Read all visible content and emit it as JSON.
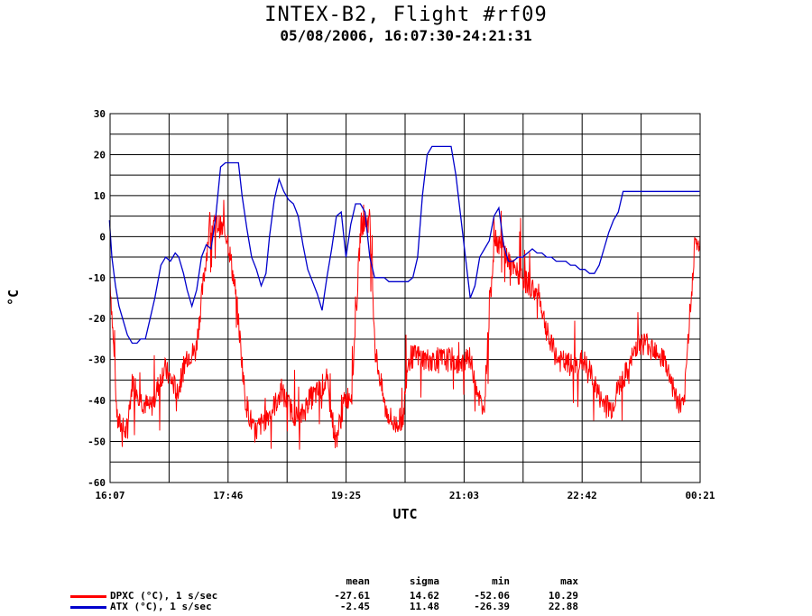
{
  "header": {
    "title": "INTEX-B2, Flight #rf09",
    "subtitle": "05/08/2006, 16:07:30-24:21:31"
  },
  "chart_data": {
    "type": "line",
    "xlabel": "UTC",
    "ylabel": "°C",
    "ylim": [
      -60,
      30
    ],
    "yticks": [
      30,
      20,
      10,
      0,
      -10,
      -20,
      -30,
      -40,
      -50,
      -60
    ],
    "xtick_labels": [
      "16:07",
      "17:46",
      "19:25",
      "21:03",
      "22:42",
      "00:21"
    ],
    "grid": true,
    "series": [
      {
        "name": "ATX (°C), 1 s/sec",
        "color": "#0000cc",
        "x": [
          "16:07",
          "16:09",
          "16:12",
          "16:15",
          "16:18",
          "16:22",
          "16:26",
          "16:30",
          "16:33",
          "16:37",
          "16:41",
          "16:45",
          "16:50",
          "16:54",
          "16:58",
          "17:02",
          "17:05",
          "17:09",
          "17:12",
          "17:16",
          "17:20",
          "17:24",
          "17:28",
          "17:32",
          "17:36",
          "17:40",
          "17:44",
          "17:48",
          "17:51",
          "17:55",
          "17:58",
          "18:02",
          "18:06",
          "18:10",
          "18:14",
          "18:18",
          "18:21",
          "18:25",
          "18:29",
          "18:33",
          "18:37",
          "18:41",
          "18:45",
          "18:49",
          "18:53",
          "18:57",
          "19:01",
          "19:05",
          "19:09",
          "19:13",
          "19:17",
          "19:21",
          "19:25",
          "19:29",
          "19:33",
          "19:37",
          "19:41",
          "19:45",
          "19:49",
          "19:53",
          "19:57",
          "20:01",
          "20:05",
          "20:09",
          "20:13",
          "20:17",
          "20:21",
          "20:25",
          "20:29",
          "20:33",
          "20:37",
          "20:41",
          "20:45",
          "20:49",
          "20:53",
          "20:57",
          "21:01",
          "21:05",
          "21:09",
          "21:13",
          "21:17",
          "21:21",
          "21:25",
          "21:29",
          "21:33",
          "21:37",
          "21:41",
          "21:45",
          "21:49",
          "21:53",
          "21:57",
          "22:01",
          "22:05",
          "22:09",
          "22:13",
          "22:17",
          "22:21",
          "22:25",
          "22:29",
          "22:33",
          "22:37",
          "22:41",
          "22:45",
          "22:49",
          "22:53",
          "22:57",
          "23:01",
          "23:05",
          "23:09",
          "23:13",
          "23:17",
          "23:21",
          "23:25",
          "23:29",
          "23:33",
          "23:37",
          "23:41",
          "23:45",
          "23:49",
          "23:53",
          "23:57",
          "24:01",
          "24:05",
          "24:09",
          "24:13",
          "24:17",
          "24:21"
        ],
        "y": [
          4,
          -5,
          -12,
          -17,
          -20,
          -24,
          -26,
          -26,
          -25,
          -25,
          -20,
          -15,
          -7,
          -5,
          -6,
          -4,
          -5,
          -9,
          -13,
          -17,
          -13,
          -5,
          -2,
          -3,
          5,
          17,
          18,
          18,
          18,
          18,
          10,
          2,
          -5,
          -8,
          -12,
          -9,
          0,
          9,
          14,
          11,
          9,
          8,
          5,
          -2,
          -8,
          -11,
          -14,
          -18,
          -10,
          -3,
          5,
          6,
          -5,
          3,
          8,
          8,
          6,
          -5,
          -10,
          -10,
          -10,
          -11,
          -11,
          -11,
          -11,
          -11,
          -10,
          -5,
          10,
          20,
          22,
          22,
          22,
          22,
          22,
          15,
          5,
          -5,
          -15,
          -12,
          -5,
          -3,
          -1,
          5,
          7,
          -2,
          -6,
          -6,
          -5,
          -5,
          -4,
          -3,
          -4,
          -4,
          -5,
          -5,
          -6,
          -6,
          -6,
          -7,
          -7,
          -8,
          -8,
          -9,
          -9,
          -7,
          -3,
          1,
          4,
          6,
          11,
          11,
          11,
          11,
          11,
          11,
          11,
          11,
          11,
          11,
          11,
          11,
          11,
          11,
          11,
          11,
          11
        ],
        "stats": {
          "mean": "-2.45",
          "sigma": "11.48",
          "min": "-26.39",
          "max": "22.88"
        }
      },
      {
        "name": "DPXC (°C), 1 s/sec",
        "color": "#ff0000",
        "stats": {
          "mean": "-27.61",
          "sigma": "14.62",
          "min": "-52.06",
          "max": "10.29"
        }
      }
    ]
  },
  "stats_header": {
    "mean": "mean",
    "sigma": "sigma",
    "min": "min",
    "max": "max"
  }
}
